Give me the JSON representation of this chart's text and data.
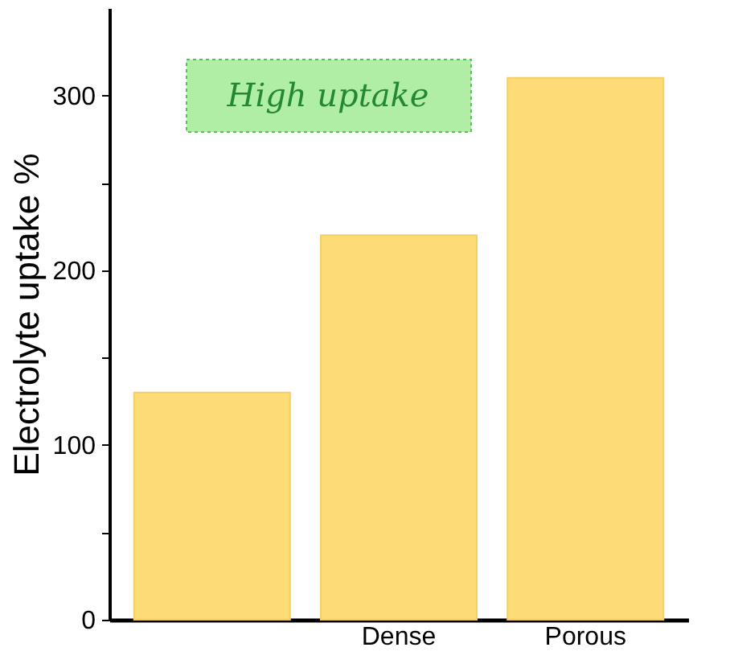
{
  "chart_data": {
    "type": "bar",
    "ylabel": "Electrolyte uptake %",
    "categories": [
      null,
      "Dense",
      "Porous"
    ],
    "values": [
      130,
      220,
      310
    ],
    "color": "#fddc78",
    "ylim": [
      0,
      350
    ],
    "yticks": [
      0,
      {
        "value": 50,
        "label": null
      },
      100,
      {
        "value": 150,
        "label": null
      },
      200,
      {
        "value": 250,
        "label": null
      },
      300
    ],
    "grid": false,
    "annotations": [
      "High uptake"
    ]
  }
}
